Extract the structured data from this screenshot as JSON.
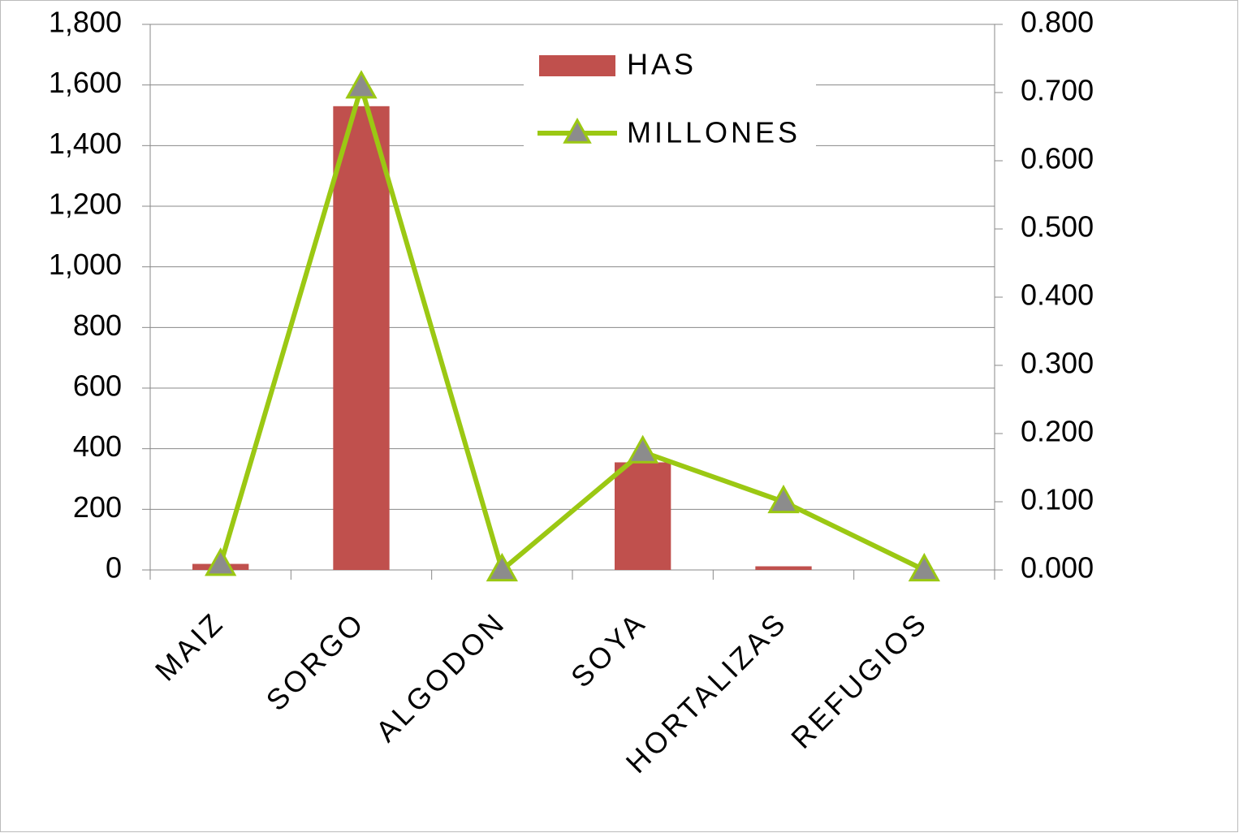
{
  "chart_data": {
    "type": "bar_line",
    "categories": [
      "MAIZ",
      "SORGO",
      "ALGODON",
      "SOYA",
      "HORTALIZAS",
      "REFUGIOS"
    ],
    "series": [
      {
        "name": "HAS",
        "type": "bar",
        "color": "#c0504d",
        "values": [
          20,
          1530,
          0,
          355,
          12,
          0
        ]
      },
      {
        "name": "MILLONES",
        "type": "line",
        "axis": "y2",
        "color": "#9bc813",
        "marker_color": "#8c8c8c",
        "values": [
          0.008,
          0.708,
          0,
          0.173,
          0.1,
          0
        ]
      }
    ],
    "ylim": [
      0,
      1800
    ],
    "yticks": [
      0,
      200,
      400,
      600,
      800,
      {
        "value": 1000,
        "label": "1,000"
      },
      {
        "value": 1200,
        "label": "1,200"
      },
      {
        "value": 1400,
        "label": "1,400"
      },
      {
        "value": 1600,
        "label": "1,600"
      },
      {
        "value": 1800,
        "label": "1,800"
      }
    ],
    "y2lim": [
      0,
      0.8
    ],
    "y2ticks": [
      {
        "value": 0,
        "label": "0.000"
      },
      {
        "value": 0.1,
        "label": "0.100"
      },
      {
        "value": 0.2,
        "label": "0.200"
      },
      {
        "value": 0.3,
        "label": "0.300"
      },
      {
        "value": 0.4,
        "label": "0.400"
      },
      {
        "value": 0.5,
        "label": "0.500"
      },
      {
        "value": 0.6,
        "label": "0.600"
      },
      {
        "value": 0.7,
        "label": "0.700"
      },
      {
        "value": 0.8,
        "label": "0.800"
      }
    ],
    "grid": true,
    "legend": "top"
  }
}
